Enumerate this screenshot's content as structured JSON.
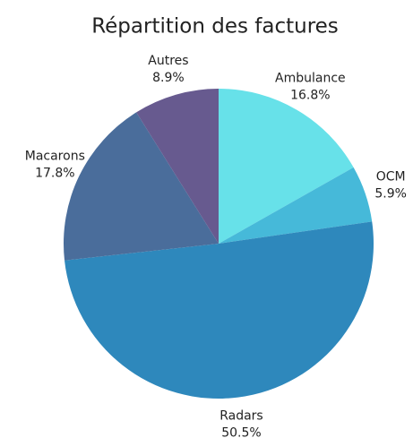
{
  "chart_data": {
    "type": "pie",
    "title": "Répartition des factures",
    "categories": [
      "Ambulance",
      "OCM",
      "Radars",
      "Macarons",
      "Autres"
    ],
    "values": [
      16.8,
      5.9,
      50.5,
      17.8,
      8.9
    ],
    "value_labels": [
      "16.8%",
      "5.9%",
      "50.5%",
      "17.8%",
      "8.9%"
    ],
    "colors": [
      "#67e1e9",
      "#46b9d9",
      "#2e88bc",
      "#4a6d9b",
      "#675a8f"
    ]
  }
}
